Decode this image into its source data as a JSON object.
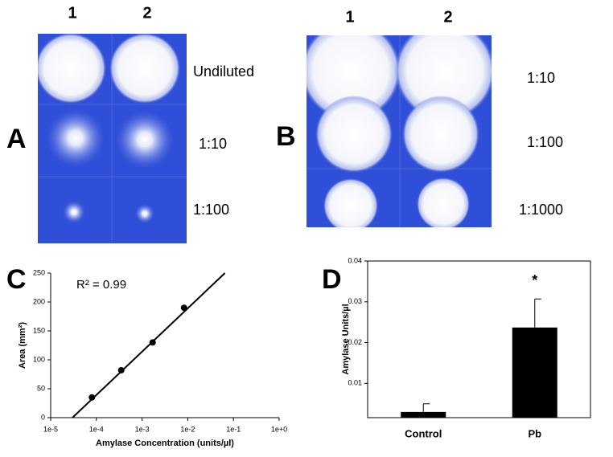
{
  "panels": {
    "A": {
      "label": "A",
      "columns": [
        "1",
        "2"
      ],
      "rows": [
        "Undiluted",
        "1:10",
        "1:100"
      ]
    },
    "B": {
      "label": "B",
      "columns": [
        "1",
        "2"
      ],
      "rows": [
        "1:10",
        "1:100",
        "1:1000"
      ]
    }
  },
  "chart_data": [
    {
      "type": "scatter",
      "panel_label": "C",
      "annotation": "R² = 0.99",
      "x_label": "Amylase Concentration (units/µl)",
      "y_label": "Area (mm²)",
      "x": [
        8e-05,
        0.00035,
        0.0017,
        0.0083
      ],
      "values": [
        35,
        82,
        130,
        190
      ],
      "color": "#000000",
      "fit": {
        "x": [
          3e-05,
          0.065
        ],
        "y": [
          0,
          250
        ]
      },
      "xscale": "log",
      "xlim": [
        1e-05,
        1
      ],
      "xticks": [
        {
          "value": 1e-05,
          "label": "1e-5"
        },
        {
          "value": 0.0001,
          "label": "1e-4"
        },
        {
          "value": 0.001,
          "label": "1e-3"
        },
        {
          "value": 0.01,
          "label": "1e-2"
        },
        {
          "value": 0.1,
          "label": "1e-1"
        },
        {
          "value": 1,
          "label": "1e+0"
        }
      ],
      "ylim": [
        0,
        250
      ],
      "yticks": [
        0,
        50,
        100,
        150,
        200,
        250
      ]
    },
    {
      "type": "bar",
      "panel_label": "D",
      "y_label": "Amylase Units/µl",
      "categories": [
        "Control",
        "Pb"
      ],
      "values": [
        0.003,
        0.0237
      ],
      "errors": [
        0.002,
        0.007
      ],
      "color": "#000000",
      "annotation": "*",
      "annotation_category": "Pb",
      "ylim": [
        0.0016,
        0.04
      ],
      "yticks": [
        0.01,
        0.02,
        0.03,
        0.04
      ]
    }
  ]
}
